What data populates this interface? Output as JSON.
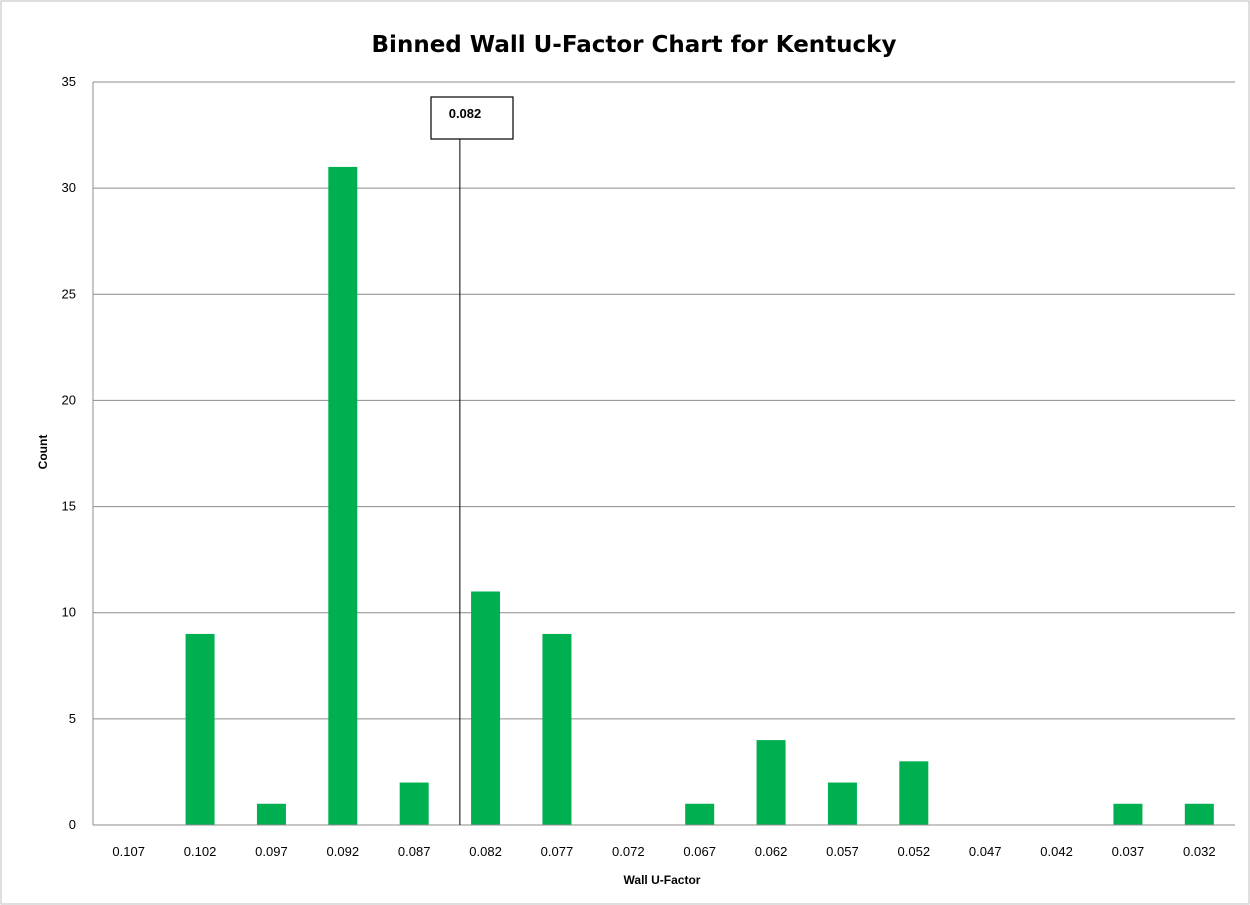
{
  "chart_data": {
    "type": "bar",
    "title": "Binned Wall U-Factor Chart for Kentucky",
    "xlabel": "Wall U-Factor",
    "ylabel": "Count",
    "categories": [
      "0.107",
      "0.102",
      "0.097",
      "0.092",
      "0.087",
      "0.082",
      "0.077",
      "0.072",
      "0.067",
      "0.062",
      "0.057",
      "0.052",
      "0.047",
      "0.042",
      "0.037",
      "0.032"
    ],
    "values": [
      0,
      9,
      1,
      31,
      2,
      11,
      9,
      0,
      1,
      4,
      2,
      3,
      0,
      0,
      1,
      1
    ],
    "ylim": [
      0,
      35
    ],
    "yticks": [
      "0",
      "5",
      "10",
      "15",
      "20",
      "25",
      "30",
      "35"
    ],
    "grid": true,
    "legend": "none",
    "bar_color": "#00b050",
    "reference_line": {
      "value": "0.082"
    }
  }
}
